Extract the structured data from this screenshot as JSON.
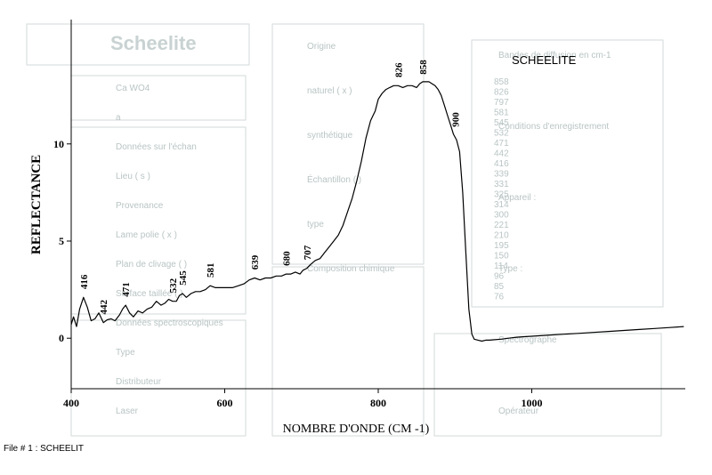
{
  "footer": "File # 1 : SCHEELIT",
  "chart_data": {
    "type": "line",
    "title": "SCHEELITE",
    "xlabel": "NOMBRE D'ONDE (CM -1)",
    "ylabel": "REFLECTANCE",
    "xlim": [
      400,
      1200
    ],
    "ylim": [
      -2.6,
      16.4
    ],
    "xticks": [
      400,
      600,
      800,
      1000
    ],
    "yticks": [
      0,
      5,
      10
    ],
    "grid": false,
    "series": [
      {
        "x": [
          400,
          403,
          407,
          411,
          416,
          421,
          426,
          431,
          436,
          442,
          447,
          452,
          457,
          463,
          467,
          471,
          476,
          481,
          487,
          493,
          499,
          505,
          511,
          517,
          522,
          527,
          532,
          537,
          541,
          545,
          550,
          556,
          562,
          568,
          575,
          581,
          588,
          595,
          602,
          610,
          618,
          625,
          632,
          639,
          646,
          653,
          660,
          667,
          674,
          680,
          686,
          692,
          698,
          702,
          707,
          712,
          718,
          724,
          730,
          736,
          742,
          748,
          754,
          760,
          766,
          772,
          778,
          784,
          790,
          796,
          800,
          805,
          810,
          815,
          820,
          826,
          832,
          838,
          844,
          850,
          854,
          858,
          862,
          866,
          870,
          874,
          878,
          882,
          886,
          890,
          894,
          898,
          902,
          906,
          910,
          914,
          918,
          922,
          925,
          930,
          935,
          940,
          945,
          950,
          960,
          970,
          980,
          990,
          1000,
          1020,
          1040,
          1060,
          1080,
          1100,
          1120,
          1140,
          1160,
          1180,
          1198
        ],
        "y": [
          0.7,
          1.1,
          0.6,
          1.5,
          2.1,
          1.6,
          0.9,
          1.0,
          1.3,
          0.8,
          0.95,
          1.0,
          0.9,
          1.2,
          1.5,
          1.7,
          1.3,
          1.1,
          1.4,
          1.3,
          1.5,
          1.6,
          1.9,
          1.7,
          1.8,
          2.0,
          1.9,
          1.9,
          2.2,
          2.3,
          2.1,
          2.3,
          2.4,
          2.4,
          2.5,
          2.7,
          2.6,
          2.6,
          2.6,
          2.6,
          2.7,
          2.8,
          3.0,
          3.1,
          3.0,
          3.1,
          3.1,
          3.2,
          3.2,
          3.3,
          3.3,
          3.4,
          3.3,
          3.5,
          3.6,
          3.8,
          4.0,
          4.1,
          4.4,
          4.7,
          5.0,
          5.3,
          5.8,
          6.5,
          7.2,
          8.1,
          9.1,
          10.3,
          11.2,
          11.7,
          12.3,
          12.6,
          12.8,
          12.9,
          13.0,
          13.0,
          12.9,
          13.0,
          13.0,
          12.9,
          13.1,
          13.2,
          13.2,
          13.2,
          13.1,
          13.0,
          12.8,
          12.5,
          12.0,
          11.5,
          11.0,
          10.5,
          10.2,
          9.6,
          7.5,
          4.5,
          1.5,
          0.2,
          -0.05,
          -0.1,
          -0.15,
          -0.1,
          -0.1,
          -0.08,
          -0.05,
          0.0,
          0.05,
          0.08,
          0.1,
          0.15,
          0.2,
          0.25,
          0.3,
          0.35,
          0.4,
          0.45,
          0.5,
          0.55,
          0.6
        ]
      }
    ],
    "peak_labels": [
      {
        "x": 416,
        "y": 2.25,
        "label": "416"
      },
      {
        "x": 442,
        "y": 0.95,
        "label": "442"
      },
      {
        "x": 471,
        "y": 1.85,
        "label": "471"
      },
      {
        "x": 532,
        "y": 2.05,
        "label": "532"
      },
      {
        "x": 545,
        "y": 2.45,
        "label": "545"
      },
      {
        "x": 581,
        "y": 2.85,
        "label": "581"
      },
      {
        "x": 639,
        "y": 3.25,
        "label": "639"
      },
      {
        "x": 680,
        "y": 3.45,
        "label": "680"
      },
      {
        "x": 707,
        "y": 3.75,
        "label": "707"
      },
      {
        "x": 826,
        "y": 13.15,
        "label": "826"
      },
      {
        "x": 858,
        "y": 13.3,
        "label": "858"
      },
      {
        "x": 900,
        "y": 10.6,
        "label": "900"
      }
    ]
  },
  "background_form": {
    "header": "Scheelite",
    "left_lines": [
      "Ca WO4",
      "a ",
      "Données sur l'échan",
      "Lieu ( s )",
      "Provenance",
      "Lame polie ( x )",
      "Plan de clivage ( )",
      "Surface taillée ( )",
      "Données spectroscopiques",
      "Type",
      "Distributeur",
      "Laser"
    ],
    "middle_lines": [
      "Origine",
      "naturel ( x )",
      "synthétique",
      "Échantillon ( )",
      "type",
      "Composition chimique"
    ],
    "right_lines": [
      "Bandes de diffusion en cm-1",
      "Conditions d'enregistrement",
      "Appareil :",
      "Type :",
      "Spectrographe",
      "Opérateur"
    ],
    "table_values": [
      "858",
      "826",
      "797",
      "581",
      "545",
      "532",
      "471",
      "442",
      "416",
      "339",
      "331",
      "325",
      "314",
      "300",
      "221",
      "210",
      "195",
      "150",
      "114",
      "96",
      "85",
      "76"
    ]
  }
}
